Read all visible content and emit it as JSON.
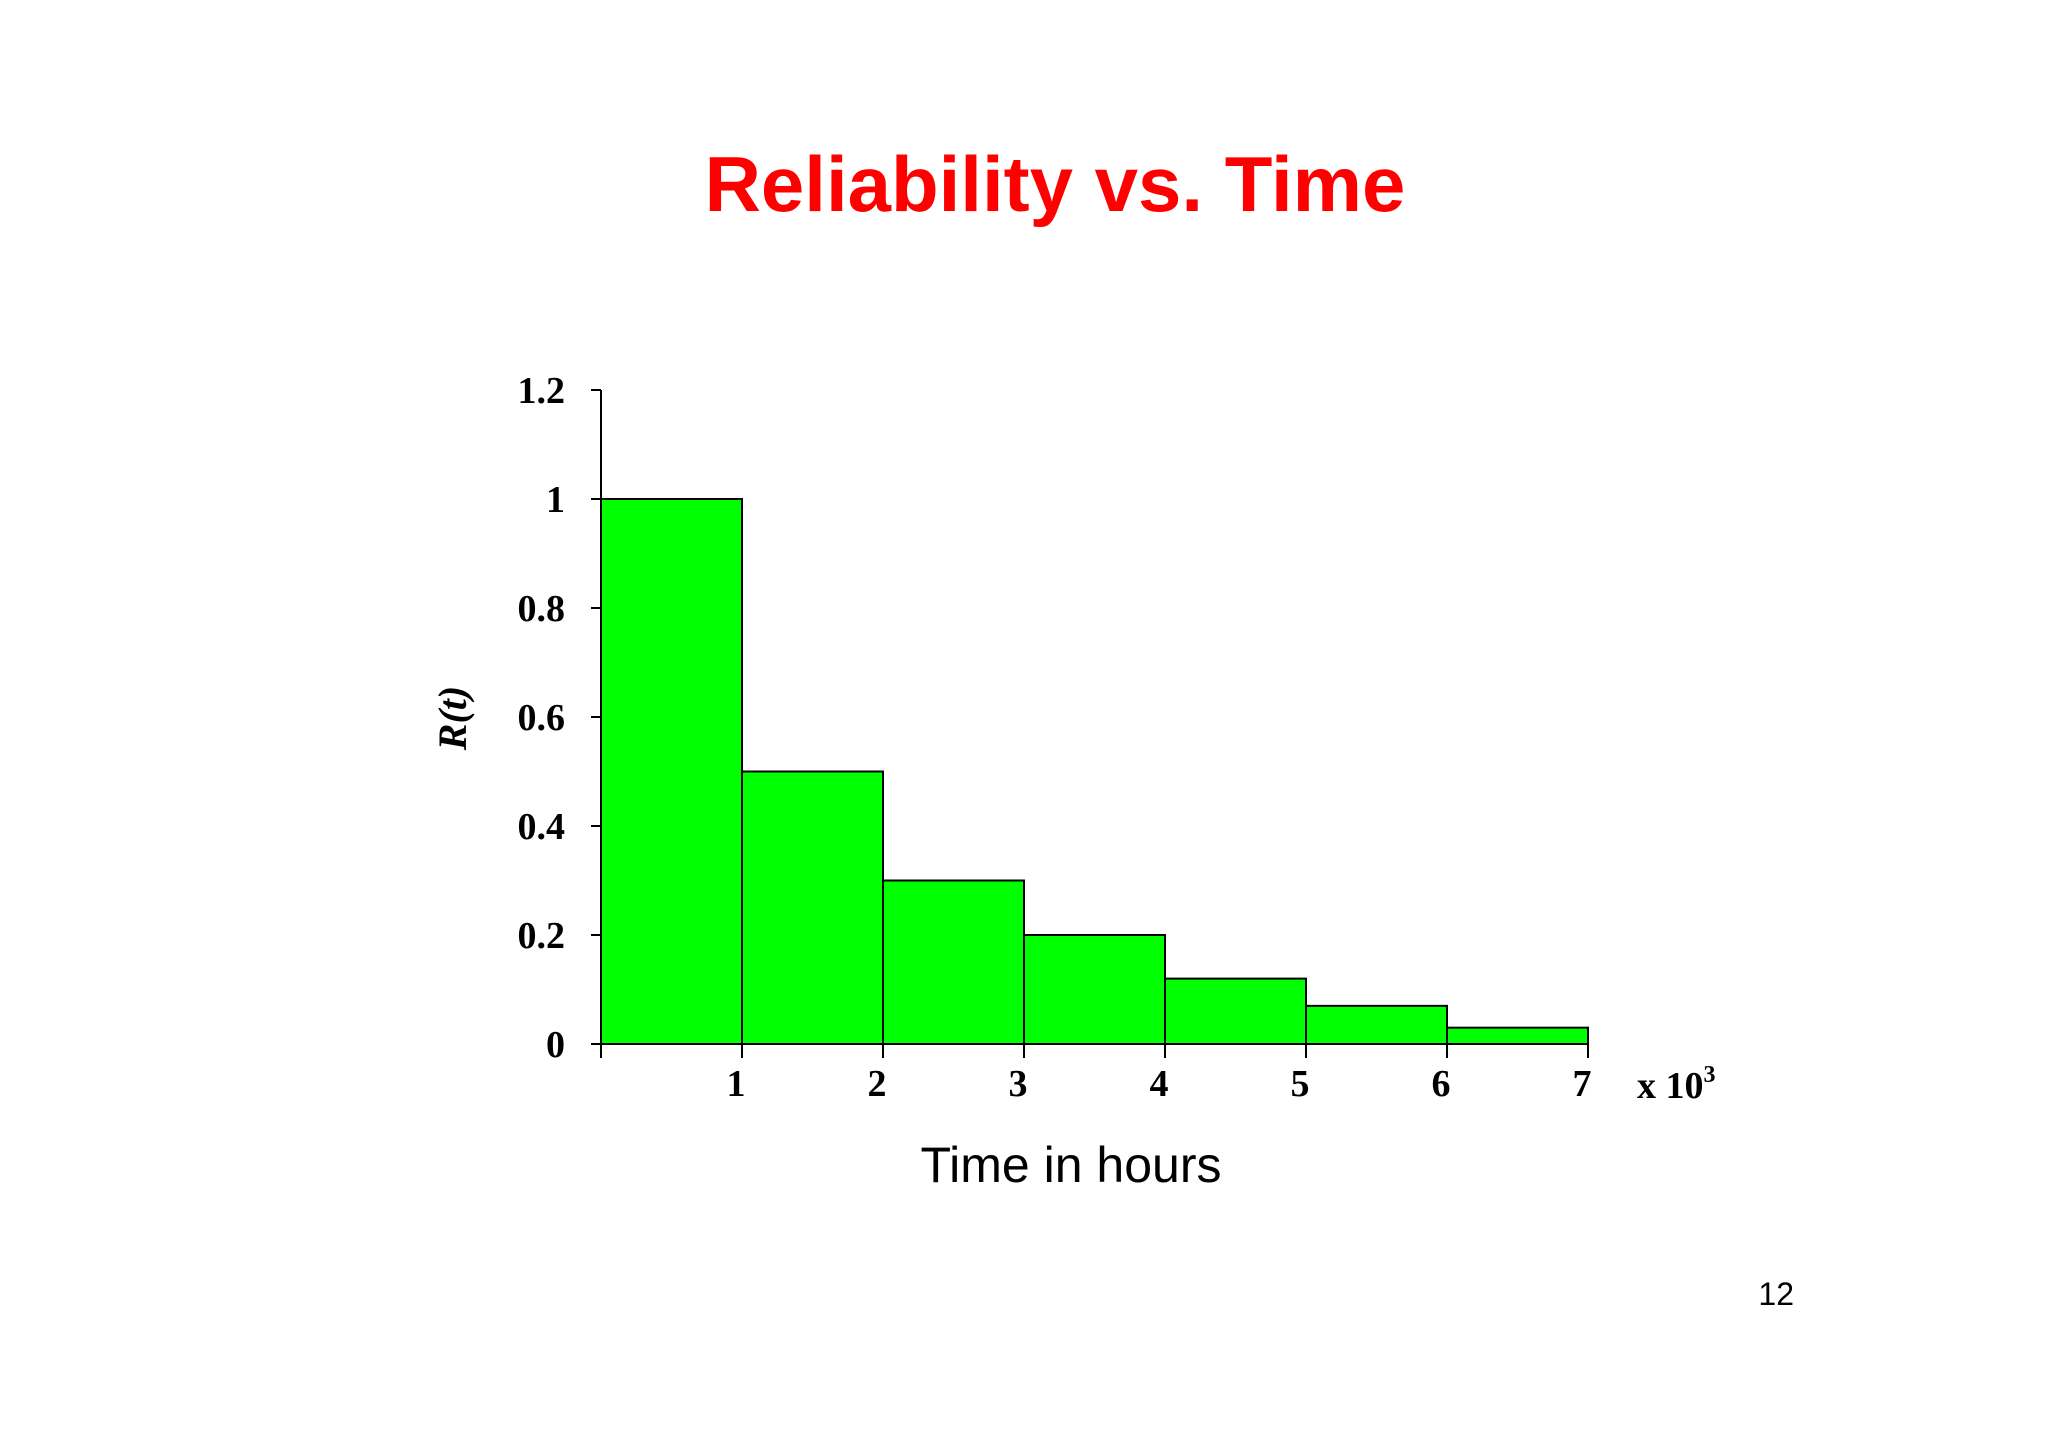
{
  "slide": {
    "title": "Reliability vs. Time",
    "page_number": "12",
    "title_color": "#ff0000"
  },
  "chart_data": {
    "type": "bar",
    "title": "",
    "xlabel": "Time in hours",
    "ylabel": "R(t)",
    "x_multiplier_prefix": "x 10",
    "x_multiplier_exponent": "3",
    "categories": [
      "0-1",
      "1-2",
      "2-3",
      "3-4",
      "4-5",
      "5-6",
      "6-7"
    ],
    "bins": [
      [
        0,
        1
      ],
      [
        1,
        2
      ],
      [
        2,
        3
      ],
      [
        3,
        4
      ],
      [
        4,
        5
      ],
      [
        5,
        6
      ],
      [
        6,
        7
      ]
    ],
    "values": [
      1.0,
      0.5,
      0.3,
      0.2,
      0.12,
      0.07,
      0.03
    ],
    "ylim": [
      0,
      1.2
    ],
    "xlim": [
      0,
      7
    ],
    "yticks": [
      0,
      0.2,
      0.4,
      0.6,
      0.8,
      1,
      1.2
    ],
    "ytick_labels": [
      "0",
      "0.2",
      "0.4",
      "0.6",
      "0.8",
      "1",
      "1.2"
    ],
    "xticks": [
      1,
      2,
      3,
      4,
      5,
      6,
      7
    ],
    "xtick_labels": [
      "1",
      "2",
      "3",
      "4",
      "5",
      "6",
      "7"
    ],
    "bar_color": "#00ff00",
    "grid": false,
    "legend": "none"
  }
}
